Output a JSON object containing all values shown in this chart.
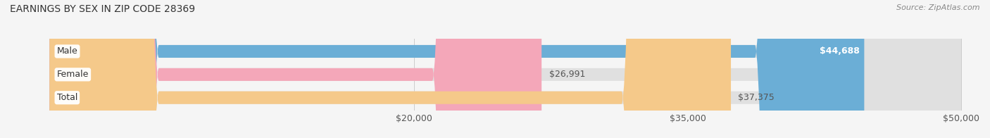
{
  "title": "EARNINGS BY SEX IN ZIP CODE 28369",
  "source": "Source: ZipAtlas.com",
  "categories": [
    "Male",
    "Female",
    "Total"
  ],
  "values": [
    44688,
    26991,
    37375
  ],
  "bar_colors": [
    "#6baed6",
    "#f4a7b9",
    "#f5c98a"
  ],
  "bar_labels": [
    "$44,688",
    "$26,991",
    "$37,375"
  ],
  "xmin": 0,
  "xmax": 50000,
  "xticks": [
    20000,
    35000,
    50000
  ],
  "xtick_labels": [
    "$20,000",
    "$35,000",
    "$50,000"
  ],
  "background_color": "#f5f5f5",
  "bar_background_color": "#e0e0e0",
  "title_fontsize": 10,
  "label_fontsize": 9,
  "tick_fontsize": 9,
  "bar_height": 0.55,
  "fig_width": 14.06,
  "fig_height": 1.96
}
